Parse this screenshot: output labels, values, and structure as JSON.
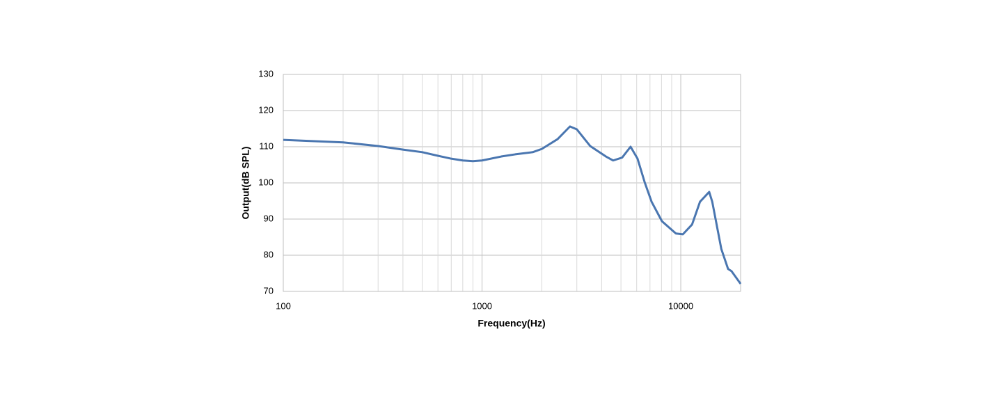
{
  "chart_data": {
    "type": "line",
    "x_axis_label": "Frequency(Hz)",
    "y_axis_label": "Output(dB SPL)",
    "log_x": true,
    "grid": true,
    "xlim": [
      100,
      20000
    ],
    "xticks": [
      100,
      1000,
      10000
    ],
    "x_minor_ticks": [
      200,
      300,
      400,
      500,
      600,
      700,
      800,
      900,
      2000,
      3000,
      4000,
      5000,
      6000,
      7000,
      8000,
      9000
    ],
    "ylim": [
      70,
      130
    ],
    "yticks": [
      70,
      80,
      90,
      100,
      110,
      120,
      130
    ],
    "x": [
      100,
      200,
      300,
      400,
      500,
      600,
      700,
      800,
      900,
      1000,
      1250,
      1470,
      1800,
      2000,
      2400,
      2770,
      3000,
      3500,
      4200,
      4570,
      5070,
      5590,
      6060,
      6580,
      7130,
      8040,
      9450,
      10250,
      11400,
      12500,
      13900,
      14400,
      16000,
      17300,
      18000,
      20000
    ],
    "series": [
      {
        "name": "Output",
        "color": "#4a76b0",
        "values": [
          111.9,
          111.2,
          110.2,
          109.2,
          108.5,
          107.5,
          106.7,
          106.2,
          106.0,
          106.2,
          107.3,
          107.9,
          108.5,
          109.4,
          112.1,
          115.6,
          114.8,
          110.2,
          107.3,
          106.2,
          107.0,
          110.0,
          106.7,
          100.2,
          94.8,
          89.4,
          86.0,
          85.8,
          88.5,
          94.8,
          97.5,
          94.8,
          81.7,
          76.2,
          75.6,
          72.1
        ]
      }
    ]
  }
}
